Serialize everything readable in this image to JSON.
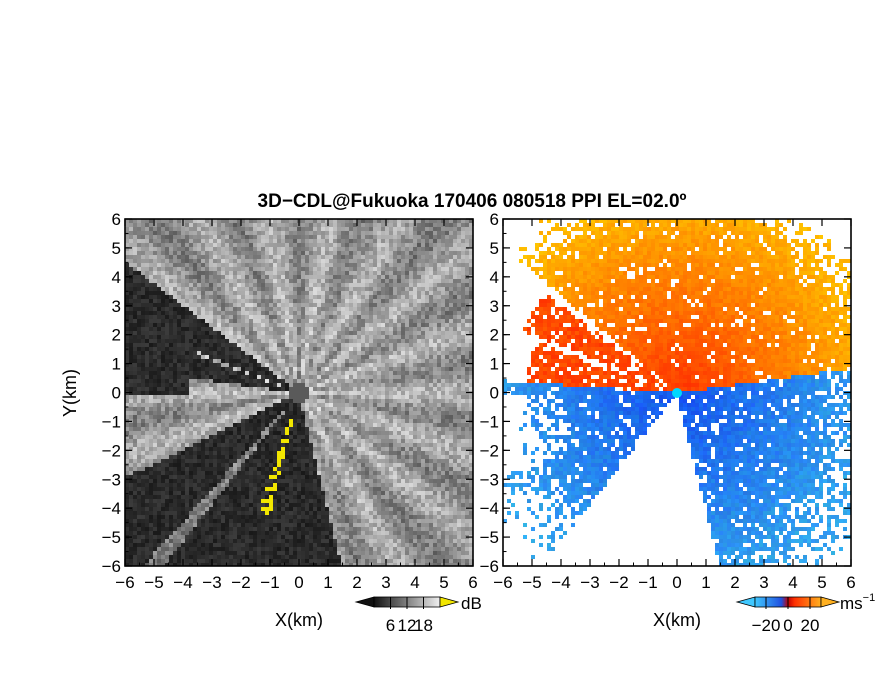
{
  "title": "3D−CDL@Fukuoka 170406 080518 PPI EL=02.0º",
  "chart_data": [
    {
      "type": "heatmap",
      "panel": "left",
      "quantity_unit": "dB",
      "xlabel": "X(km)",
      "ylabel": "Y(km)",
      "xlim": [
        -6,
        6
      ],
      "ylim": [
        -6,
        6
      ],
      "x_ticks": [
        "−6",
        "−5",
        "−4",
        "−3",
        "−2",
        "−1",
        "0",
        "1",
        "2",
        "3",
        "4",
        "5",
        "6"
      ],
      "y_ticks": [
        "6",
        "5",
        "4",
        "3",
        "2",
        "1",
        "0",
        "−1",
        "−2",
        "−3",
        "−4",
        "−5",
        "−6"
      ],
      "colorbar": {
        "ticks": [
          "6",
          "12",
          "18"
        ],
        "tick_values": [
          6,
          12,
          18
        ],
        "range": [
          0,
          24
        ],
        "unit": "dB"
      },
      "colors": {
        "low": "#222222",
        "high": "#e6e6e6",
        "mask": "#f2e600"
      }
    },
    {
      "type": "heatmap",
      "panel": "right",
      "quantity_unit": "ms⁻¹",
      "xlabel": "X(km)",
      "ylabel": "",
      "xlim": [
        -6,
        6
      ],
      "ylim": [
        -6,
        6
      ],
      "x_ticks": [
        "−6",
        "−5",
        "−4",
        "−3",
        "−2",
        "−1",
        "0",
        "1",
        "2",
        "3",
        "4",
        "5",
        "6"
      ],
      "y_ticks": [
        "6",
        "5",
        "4",
        "3",
        "2",
        "1",
        "0",
        "−1",
        "−2",
        "−3",
        "−4",
        "−5",
        "−6"
      ],
      "colorbar": {
        "ticks": [
          "−20",
          "0",
          "20"
        ],
        "tick_values": [
          -20,
          0,
          20
        ],
        "range": [
          -30,
          30
        ],
        "unit": "ms",
        "unit_sup": "−1"
      },
      "colors": {
        "negative_strong": "#2060e0",
        "negative_weak": "#40a8f0",
        "zero": "#c00000",
        "positive_weak": "#ff3a00",
        "positive_strong": "#ff9a1a",
        "center": "#00d8ff"
      }
    }
  ]
}
